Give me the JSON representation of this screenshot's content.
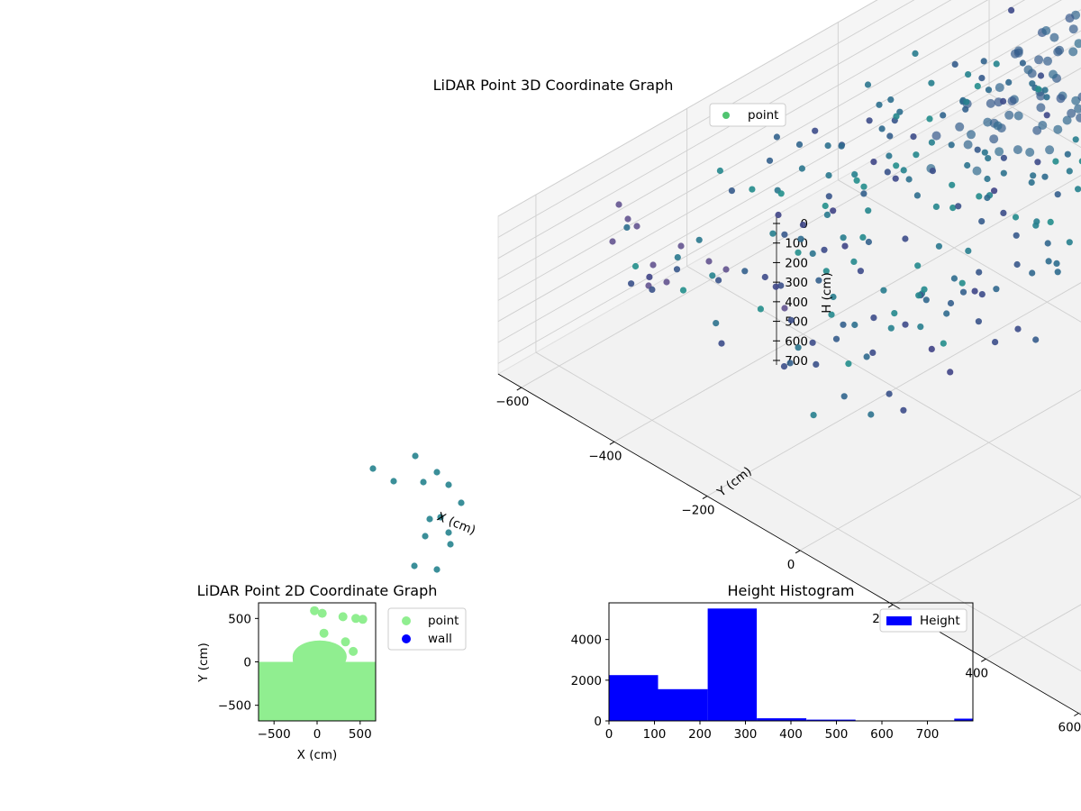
{
  "chart_data": [
    {
      "type": "scatter",
      "projection": "3d",
      "title": "LiDAR Point 3D Coordinate Graph",
      "xlabel": "X (cm)",
      "ylabel": "Y (cm)",
      "zlabel": "H (cm)",
      "xlim": [
        -650,
        650
      ],
      "ylim": [
        -650,
        650
      ],
      "zlim": [
        750,
        0
      ],
      "x_ticks": [
        "−600",
        "−400",
        "−200",
        "0",
        "200",
        "400",
        "600"
      ],
      "y_ticks": [
        "−600",
        "−400",
        "−200",
        "0",
        "200",
        "400",
        "600"
      ],
      "z_ticks": [
        "0",
        "100",
        "200",
        "300",
        "400",
        "500",
        "600",
        "700"
      ],
      "colormap": "viridis",
      "legend": {
        "position": "top-right",
        "entries": [
          {
            "label": "point",
            "color": "#50c470"
          }
        ]
      },
      "series": [
        {
          "name": "point",
          "description_points": "dense ring-shaped wall of points plus scattered outliers"
        }
      ]
    },
    {
      "type": "scatter",
      "title": "LiDAR Point 2D Coordinate Graph",
      "xlabel": "X (cm)",
      "ylabel": "Y (cm)",
      "xlim": [
        -680,
        680
      ],
      "ylim": [
        -680,
        680
      ],
      "x_ticks": [
        "−500",
        "0",
        "500"
      ],
      "y_ticks": [
        "500",
        "0",
        "−500"
      ],
      "legend": {
        "position": "outside-right",
        "entries": [
          {
            "label": "point",
            "color": "#90ee90"
          },
          {
            "label": "wall",
            "color": "#0000ff"
          }
        ]
      },
      "series": [
        {
          "name": "point",
          "color": "#90ee90",
          "outliers": [
            [
              -30,
              590
            ],
            [
              60,
              560
            ],
            [
              300,
              520
            ],
            [
              450,
              500
            ],
            [
              530,
              490
            ],
            [
              330,
              230
            ],
            [
              420,
              120
            ],
            [
              80,
              330
            ]
          ]
        },
        {
          "name": "wall",
          "color": "#0000ff"
        }
      ]
    },
    {
      "type": "bar",
      "subtype": "histogram",
      "title": "Height Histogram",
      "xlabel": "",
      "ylabel": "",
      "xlim": [
        0,
        800
      ],
      "ylim": [
        0,
        5800
      ],
      "x_ticks": [
        "0",
        "100",
        "200",
        "300",
        "400",
        "500",
        "600",
        "700"
      ],
      "y_ticks": [
        "0",
        "2000",
        "4000"
      ],
      "legend": {
        "position": "top-right",
        "entries": [
          {
            "label": "Height",
            "color": "#0000ff"
          }
        ]
      },
      "bins": [
        {
          "from": 0,
          "to": 108,
          "count": 2250
        },
        {
          "from": 108,
          "to": 217,
          "count": 1560
        },
        {
          "from": 217,
          "to": 325,
          "count": 5520
        },
        {
          "from": 325,
          "to": 434,
          "count": 130
        },
        {
          "from": 434,
          "to": 542,
          "count": 60
        },
        {
          "from": 542,
          "to": 651,
          "count": 20
        },
        {
          "from": 651,
          "to": 759,
          "count": 20
        },
        {
          "from": 759,
          "to": 868,
          "count": 110
        }
      ]
    }
  ]
}
